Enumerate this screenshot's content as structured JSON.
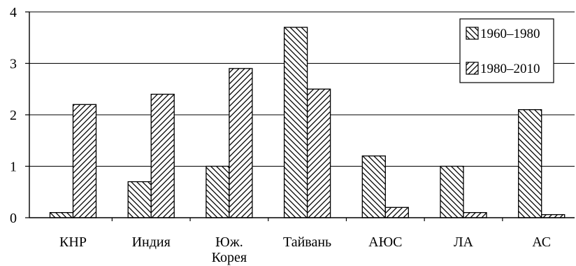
{
  "chart_data": {
    "type": "bar",
    "categories": [
      "КНР",
      "Индия",
      "Юж.\nКорея",
      "Тайвань",
      "АЮС",
      "ЛА",
      "АС"
    ],
    "series": [
      {
        "name": "1960–1980",
        "values": [
          0.1,
          0.7,
          1.0,
          3.7,
          1.2,
          1.0,
          2.1
        ],
        "hatch": "back-diagonal"
      },
      {
        "name": "1980–2010",
        "values": [
          2.2,
          2.4,
          2.9,
          2.5,
          0.2,
          0.1,
          0.06
        ],
        "hatch": "forward-diagonal"
      }
    ],
    "ylim": [
      0,
      4
    ],
    "yticks": [
      0,
      1,
      2,
      3,
      4
    ],
    "grid": true,
    "legend": "top-right",
    "colors": {
      "fill": "#ffffff",
      "stroke": "#000000"
    }
  }
}
